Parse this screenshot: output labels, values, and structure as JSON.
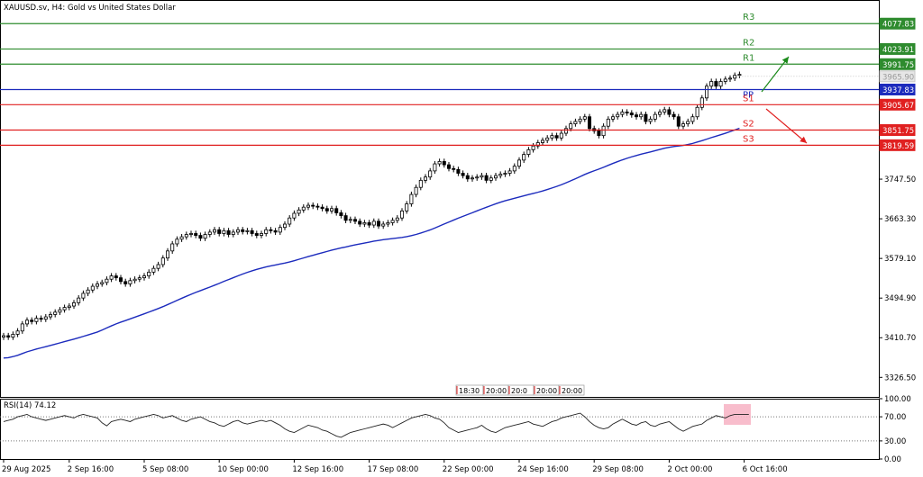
{
  "chart_data": [
    {
      "type": "candlestick",
      "title": "XAUUSD.sv, H4:  Gold vs United States Dollar",
      "ylim": [
        3285,
        4128
      ],
      "y_ticks": [
        "3326.50",
        "3410.70",
        "3494.90",
        "3579.10",
        "3663.30",
        "3747.50"
      ],
      "x_labels": [
        {
          "label": "29 Aug 2025",
          "i": 0
        },
        {
          "label": "2 Sep 16:00",
          "i": 14
        },
        {
          "label": "5 Sep 08:00",
          "i": 30
        },
        {
          "label": "10 Sep 00:00",
          "i": 46
        },
        {
          "label": "12 Sep 16:00",
          "i": 62
        },
        {
          "label": "17 Sep 08:00",
          "i": 78
        },
        {
          "label": "22 Sep 00:00",
          "i": 94
        },
        {
          "label": "24 Sep 16:00",
          "i": 110
        },
        {
          "label": "29 Sep 08:00",
          "i": 126
        },
        {
          "label": "2 Oct 00:00",
          "i": 142
        },
        {
          "label": "6 Oct 16:00",
          "i": 158
        }
      ],
      "time_labels": [
        "18:30",
        "20:00",
        "20:0",
        "20:00",
        "20:00"
      ],
      "closes": [
        3415,
        3412,
        3418,
        3425,
        3440,
        3448,
        3445,
        3452,
        3450,
        3455,
        3460,
        3465,
        3470,
        3475,
        3478,
        3485,
        3495,
        3505,
        3512,
        3520,
        3525,
        3528,
        3535,
        3542,
        3538,
        3530,
        3525,
        3532,
        3535,
        3538,
        3542,
        3550,
        3558,
        3566,
        3580,
        3595,
        3610,
        3620,
        3625,
        3630,
        3632,
        3628,
        3622,
        3630,
        3635,
        3640,
        3632,
        3638,
        3630,
        3635,
        3640,
        3636,
        3638,
        3632,
        3628,
        3632,
        3640,
        3638,
        3635,
        3645,
        3652,
        3665,
        3675,
        3682,
        3688,
        3692,
        3690,
        3688,
        3685,
        3680,
        3685,
        3676,
        3670,
        3660,
        3662,
        3658,
        3652,
        3655,
        3650,
        3658,
        3648,
        3652,
        3655,
        3660,
        3665,
        3680,
        3695,
        3715,
        3730,
        3745,
        3752,
        3765,
        3780,
        3785,
        3778,
        3770,
        3768,
        3760,
        3755,
        3748,
        3750,
        3752,
        3755,
        3745,
        3750,
        3755,
        3758,
        3760,
        3765,
        3775,
        3788,
        3800,
        3810,
        3818,
        3825,
        3830,
        3835,
        3840,
        3835,
        3845,
        3855,
        3865,
        3870,
        3875,
        3880,
        3855,
        3850,
        3840,
        3860,
        3875,
        3880,
        3885,
        3890,
        3888,
        3884,
        3880,
        3885,
        3870,
        3875,
        3885,
        3890,
        3895,
        3885,
        3880,
        3860,
        3865,
        3870,
        3880,
        3900,
        3920,
        3945,
        3955,
        3945,
        3955,
        3960,
        3962,
        3968,
        3970
      ],
      "ma_start": 3360,
      "ma_end": 3840,
      "levels": [
        {
          "name": "R3",
          "value": "4077.83",
          "color": "#2e8b2e"
        },
        {
          "name": "R2",
          "value": "4023.91",
          "color": "#2e8b2e"
        },
        {
          "name": "R1",
          "value": "3991.75",
          "color": "#2e8b2e"
        },
        {
          "name": "PP",
          "value": "3937.83",
          "color": "#1c2bbd"
        },
        {
          "name": "S1",
          "value": "3905.67",
          "color": "#e02020"
        },
        {
          "name": "S2",
          "value": "3851.75",
          "color": "#e02020"
        },
        {
          "name": "S3",
          "value": "3819.59",
          "color": "#e02020"
        }
      ],
      "current_price": "3965.90",
      "colors": {
        "bull": "#ffffff",
        "bear": "#000000",
        "ma": "#1c2bbd",
        "up_arrow": "#1a8a1a",
        "down_arrow": "#e02020"
      }
    },
    {
      "type": "line",
      "title": "RSI(14) 74.12",
      "ylim": [
        0,
        100
      ],
      "y_ticks": [
        "100.00",
        "70.00",
        "30.00",
        "0.00"
      ],
      "dotted_levels": [
        30,
        70
      ],
      "rsi": [
        62,
        64,
        66,
        70,
        72,
        74,
        70,
        68,
        66,
        64,
        66,
        68,
        70,
        72,
        70,
        68,
        72,
        74,
        72,
        70,
        68,
        60,
        55,
        62,
        64,
        66,
        64,
        62,
        66,
        68,
        70,
        72,
        74,
        72,
        68,
        70,
        72,
        68,
        64,
        62,
        66,
        68,
        70,
        66,
        62,
        60,
        56,
        54,
        58,
        62,
        64,
        60,
        58,
        60,
        62,
        64,
        62,
        64,
        60,
        56,
        50,
        46,
        44,
        48,
        52,
        56,
        54,
        52,
        48,
        46,
        42,
        38,
        36,
        40,
        44,
        46,
        48,
        50,
        52,
        54,
        56,
        58,
        56,
        52,
        56,
        60,
        64,
        68,
        70,
        72,
        74,
        72,
        68,
        66,
        60,
        52,
        48,
        44,
        46,
        48,
        50,
        52,
        56,
        50,
        46,
        44,
        48,
        52,
        54,
        56,
        58,
        60,
        62,
        58,
        56,
        54,
        58,
        62,
        64,
        68,
        70,
        72,
        74,
        76,
        70,
        62,
        56,
        52,
        50,
        52,
        58,
        62,
        66,
        62,
        58,
        56,
        60,
        62,
        56,
        54,
        58,
        60,
        62,
        56,
        50,
        46,
        50,
        54,
        56,
        58,
        64,
        68,
        72,
        70,
        68,
        72,
        74,
        74,
        74,
        74
      ]
    }
  ]
}
